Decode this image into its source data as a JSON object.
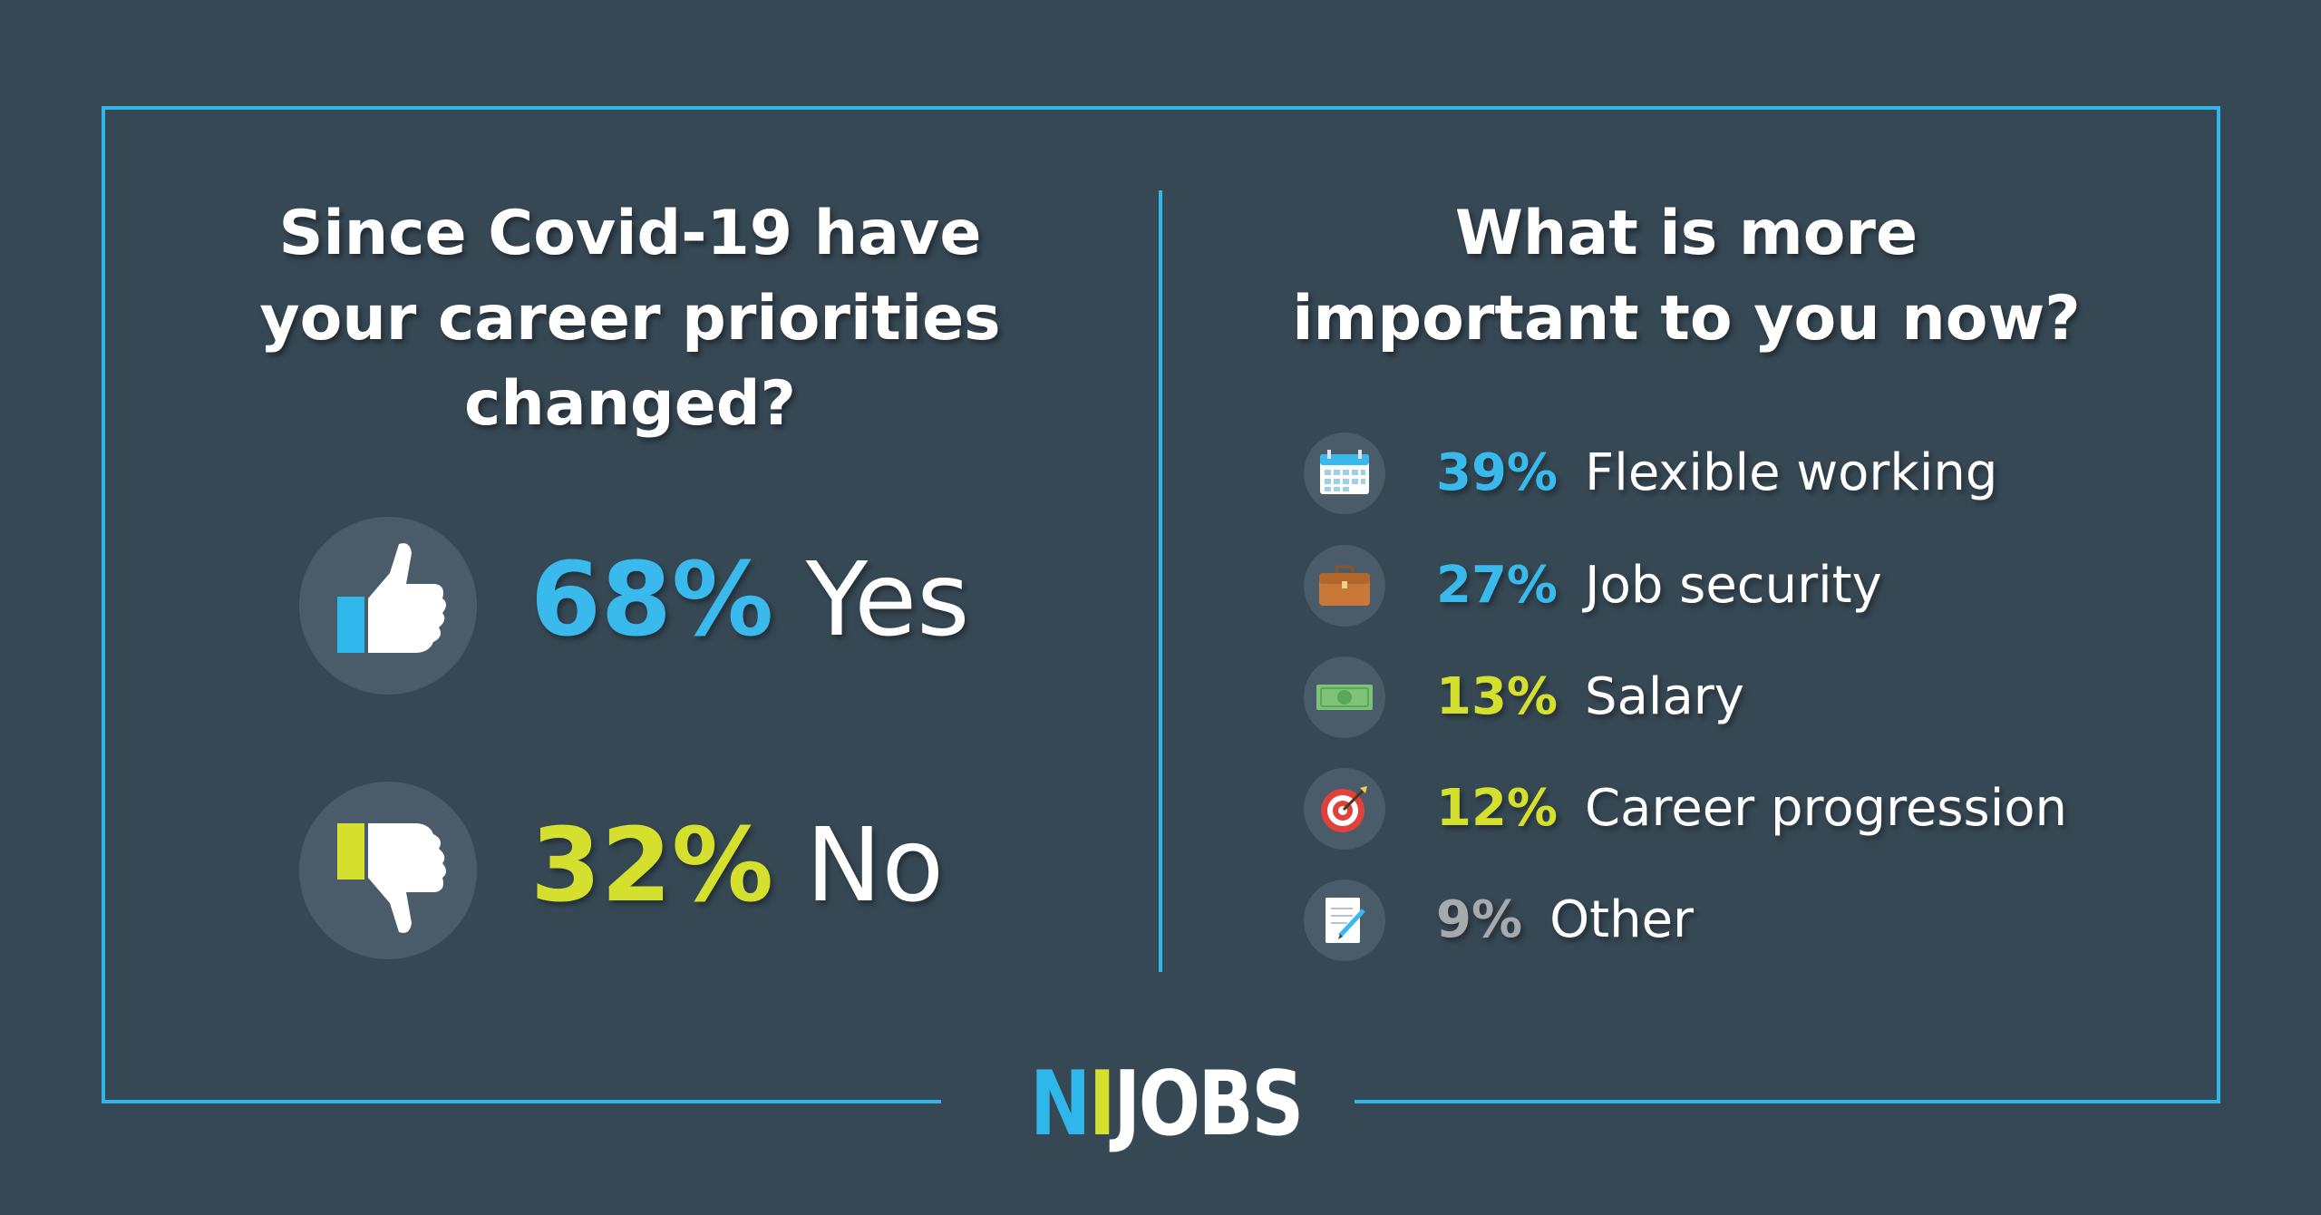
{
  "colors": {
    "background": "#364854",
    "frame": "#2fb6ea",
    "blue": "#3ab9ec",
    "lime": "#d5df2e",
    "grey": "#a7aaac",
    "icon_circle": "#4a5c69"
  },
  "left_panel": {
    "heading_line1": "Since Covid-19 have",
    "heading_line2": "your career priorities",
    "heading_line3": "changed?",
    "yes": {
      "percent": "68%",
      "label": "Yes",
      "icon": "thumbs-up-icon"
    },
    "no": {
      "percent": "32%",
      "label": "No",
      "icon": "thumbs-down-icon"
    }
  },
  "right_panel": {
    "heading_line1": "What is more",
    "heading_line2": "important to you now?",
    "options": [
      {
        "percent": "39%",
        "label": "Flexible working",
        "icon": "calendar-icon",
        "color": "#3ab9ec"
      },
      {
        "percent": "27%",
        "label": "Job security",
        "icon": "briefcase-icon",
        "color": "#3ab9ec"
      },
      {
        "percent": "13%",
        "label": "Salary",
        "icon": "banknote-icon",
        "color": "#d5df2e"
      },
      {
        "percent": "12%",
        "label": "Career progression",
        "icon": "target-icon",
        "color": "#d5df2e"
      },
      {
        "percent": "9%",
        "label": "Other",
        "icon": "notepad-icon",
        "color": "#a7aaac"
      }
    ]
  },
  "logo": {
    "part1": "N",
    "part2": "I",
    "part3": "JOBS"
  }
}
